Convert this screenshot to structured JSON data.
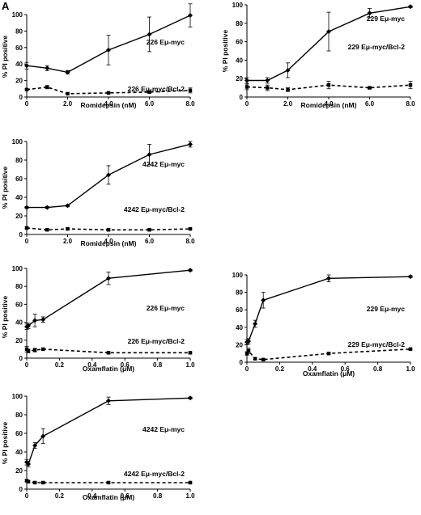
{
  "figure": {
    "panel_letter": "A"
  },
  "chart_data": [
    {
      "type": "line",
      "ylabel": "% PI positive",
      "xlabel": "Romidepsin (nM)",
      "xlim": [
        0,
        8
      ],
      "ylim": [
        0,
        100
      ],
      "xticks": [
        0,
        2,
        4,
        6,
        8
      ],
      "xtick_labels": [
        "0",
        "2.0",
        "4.0",
        "6.0",
        "8.0"
      ],
      "yticks": [
        0,
        20,
        40,
        60,
        80,
        100
      ],
      "ytick_labels": [
        "0",
        "20",
        "40",
        "60",
        "80",
        "100"
      ],
      "series": [
        {
          "name": "226 Eμ-myc",
          "style": "solid",
          "marker": "diamond",
          "x": [
            0,
            1,
            2,
            4,
            6,
            8
          ],
          "y": [
            38,
            35,
            30,
            57,
            76,
            99
          ],
          "err": [
            4,
            3,
            2,
            18,
            21,
            14
          ]
        },
        {
          "name": "226 Eμ-myc/Bcl-2",
          "style": "dashed",
          "marker": "square",
          "x": [
            0,
            1,
            2,
            4,
            6,
            8
          ],
          "y": [
            9,
            12,
            4,
            5,
            6,
            8
          ],
          "err": [
            1,
            2,
            1,
            1,
            1,
            3
          ]
        }
      ]
    },
    {
      "type": "line",
      "ylabel": "% PI positive",
      "xlabel": "Romidepsin (nM)",
      "xlim": [
        0,
        8
      ],
      "ylim": [
        0,
        100
      ],
      "xticks": [
        0,
        2,
        4,
        6,
        8
      ],
      "xtick_labels": [
        "0",
        "2.0",
        "4.0",
        "6.0",
        "8.0"
      ],
      "yticks": [
        0,
        20,
        40,
        60,
        80,
        100
      ],
      "ytick_labels": [
        "0",
        "20",
        "40",
        "60",
        "80",
        "100"
      ],
      "series": [
        {
          "name": "229 Eμ-myc",
          "style": "solid",
          "marker": "diamond",
          "x": [
            0,
            1,
            2,
            4,
            6,
            8
          ],
          "y": [
            18,
            18,
            29,
            71,
            91,
            98
          ],
          "err": [
            3,
            3,
            8,
            21,
            5,
            1
          ]
        },
        {
          "name": "229 Eμ-myc/Bcl-2",
          "style": "dashed",
          "marker": "square",
          "x": [
            0,
            1,
            2,
            4,
            6,
            8
          ],
          "y": [
            11,
            10,
            8,
            13,
            10,
            13
          ],
          "err": [
            3,
            3,
            2,
            4,
            1,
            4
          ]
        }
      ]
    },
    {
      "type": "line",
      "ylabel": "% PI positive",
      "xlabel": "Romidepsin (nM)",
      "xlim": [
        0,
        8
      ],
      "ylim": [
        0,
        100
      ],
      "xticks": [
        0,
        2,
        4,
        6,
        8
      ],
      "xtick_labels": [
        "0",
        "2.0",
        "4.0",
        "6.0",
        "8.0"
      ],
      "yticks": [
        0,
        20,
        40,
        60,
        80,
        100
      ],
      "ytick_labels": [
        "0",
        "20",
        "40",
        "60",
        "80",
        "100"
      ],
      "series": [
        {
          "name": "4242 Eμ-myc",
          "style": "solid",
          "marker": "diamond",
          "x": [
            0,
            1,
            2,
            4,
            6,
            8
          ],
          "y": [
            29,
            29,
            31,
            64,
            86,
            97
          ],
          "err": [
            1,
            1,
            1,
            10,
            11,
            3
          ]
        },
        {
          "name": "4242 Eμ-myc/Bcl-2",
          "style": "dashed",
          "marker": "square",
          "x": [
            0,
            1,
            2,
            4,
            6,
            8
          ],
          "y": [
            7,
            5,
            6,
            5,
            5,
            6
          ],
          "err": [
            1,
            1,
            1,
            1,
            1,
            1
          ]
        }
      ]
    },
    {
      "type": "line",
      "ylabel": "% PI positive",
      "xlabel": "Oxamflatin (μM)",
      "xlim": [
        0,
        1
      ],
      "ylim": [
        0,
        100
      ],
      "xticks": [
        0,
        0.2,
        0.4,
        0.6,
        0.8,
        1.0
      ],
      "xtick_labels": [
        "0",
        "0.2",
        "0.4",
        "0.6",
        "0.8",
        "1.0"
      ],
      "yticks": [
        0,
        20,
        40,
        60,
        80,
        100
      ],
      "ytick_labels": [
        "0",
        "20",
        "40",
        "60",
        "80",
        "100"
      ],
      "series": [
        {
          "name": "226 Eμ-myc",
          "style": "solid",
          "marker": "diamond",
          "x": [
            0,
            0.01,
            0.05,
            0.1,
            0.5,
            1.0
          ],
          "y": [
            35,
            36,
            42,
            43,
            89,
            98
          ],
          "err": [
            3,
            3,
            7,
            3,
            7,
            1
          ]
        },
        {
          "name": "226 Eμ-myc/Bcl-2",
          "style": "dashed",
          "marker": "square",
          "x": [
            0,
            0.01,
            0.05,
            0.1,
            0.5,
            1.0
          ],
          "y": [
            10,
            8,
            9,
            10,
            6,
            6
          ],
          "err": [
            3,
            2,
            2,
            1,
            1,
            1
          ]
        }
      ]
    },
    {
      "type": "line",
      "ylabel": "",
      "xlabel": "Oxamflatin (μM)",
      "xlim": [
        0,
        1
      ],
      "ylim": [
        0,
        100
      ],
      "xticks": [
        0,
        0.2,
        0.4,
        0.6,
        0.8,
        1.0
      ],
      "xtick_labels": [
        "0",
        "0.2",
        "0.4",
        "0.6",
        "0.8",
        "1.0"
      ],
      "yticks": [
        0,
        20,
        40,
        60,
        80,
        100
      ],
      "ytick_labels": [
        "0",
        "20",
        "40",
        "60",
        "80",
        "100"
      ],
      "series": [
        {
          "name": "229 Eμ-myc",
          "style": "solid",
          "marker": "diamond",
          "x": [
            0,
            0.01,
            0.05,
            0.1,
            0.5,
            1.0
          ],
          "y": [
            23,
            24,
            44,
            71,
            96,
            98
          ],
          "err": [
            3,
            3,
            4,
            9,
            4,
            1
          ]
        },
        {
          "name": "229 Eμ-myc/Bcl-2",
          "style": "dashed",
          "marker": "square",
          "x": [
            0,
            0.01,
            0.05,
            0.1,
            0.5,
            1.0
          ],
          "y": [
            10,
            13,
            4,
            3,
            10,
            15
          ],
          "err": [
            2,
            3,
            1,
            1,
            1,
            1
          ]
        }
      ]
    },
    {
      "type": "line",
      "ylabel": "% PI positive",
      "xlabel": "Oxamflatin (μM)",
      "xlim": [
        0,
        1
      ],
      "ylim": [
        0,
        100
      ],
      "xticks": [
        0,
        0.2,
        0.4,
        0.6,
        0.8,
        1.0
      ],
      "xtick_labels": [
        "0",
        "0.2",
        "0.4",
        "0.6",
        "0.8",
        "1.0"
      ],
      "yticks": [
        0,
        20,
        40,
        60,
        80,
        100
      ],
      "ytick_labels": [
        "0",
        "20",
        "40",
        "60",
        "80",
        "100"
      ],
      "series": [
        {
          "name": "4242 Eμ-myc",
          "style": "solid",
          "marker": "diamond",
          "x": [
            0,
            0.01,
            0.05,
            0.1,
            0.5,
            1.0
          ],
          "y": [
            29,
            27,
            47,
            57,
            95,
            98
          ],
          "err": [
            3,
            3,
            3,
            8,
            4,
            1
          ]
        },
        {
          "name": "4242 Eμ-myc/Bcl-2",
          "style": "dashed",
          "marker": "square",
          "x": [
            0,
            0.01,
            0.05,
            0.1,
            0.5,
            1.0
          ],
          "y": [
            9,
            8,
            7,
            7,
            7,
            7
          ],
          "err": [
            1,
            1,
            1,
            1,
            1,
            1
          ]
        }
      ]
    }
  ]
}
